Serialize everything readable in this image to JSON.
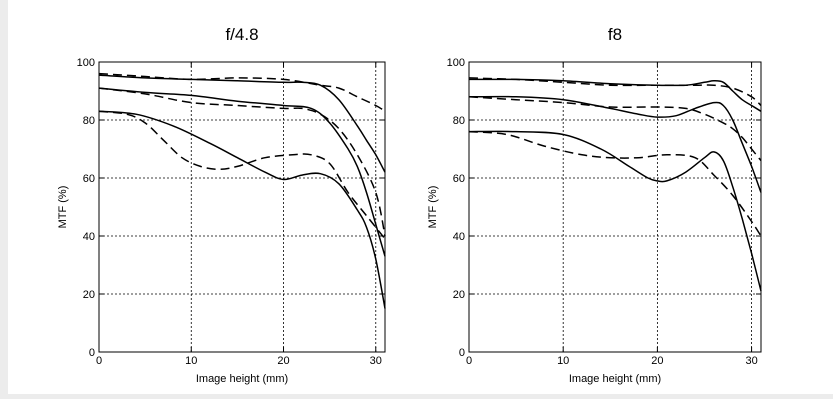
{
  "chart_data": [
    {
      "type": "line",
      "title": "f/4.8",
      "xlabel": "Image height (mm)",
      "ylabel": "MTF (%)",
      "xlim": [
        0,
        31
      ],
      "ylim": [
        0,
        100
      ],
      "xticks": [
        0,
        10,
        20,
        30
      ],
      "yticks": [
        0,
        20,
        40,
        60,
        80,
        100
      ],
      "grid": true,
      "series": [
        {
          "style": "solid",
          "points": [
            [
              0,
              95.5
            ],
            [
              5,
              94.5
            ],
            [
              10,
              94
            ],
            [
              15,
              93.5
            ],
            [
              20,
              93
            ],
            [
              22,
              93
            ],
            [
              24,
              92
            ],
            [
              26,
              87
            ],
            [
              28,
              78
            ],
            [
              29,
              73
            ],
            [
              30,
              68
            ],
            [
              31,
              62
            ]
          ]
        },
        {
          "style": "dashed",
          "points": [
            [
              0,
              96
            ],
            [
              5,
              95
            ],
            [
              10,
              94
            ],
            [
              15,
              94.5
            ],
            [
              20,
              94
            ],
            [
              24,
              92
            ],
            [
              26,
              91
            ],
            [
              28,
              88
            ],
            [
              30,
              85
            ],
            [
              31,
              83
            ]
          ]
        },
        {
          "style": "solid",
          "points": [
            [
              0,
              91
            ],
            [
              5,
              89.5
            ],
            [
              10,
              88.5
            ],
            [
              15,
              86.5
            ],
            [
              20,
              85
            ],
            [
              23,
              84
            ],
            [
              25,
              79
            ],
            [
              27,
              70
            ],
            [
              28,
              64
            ],
            [
              29,
              55
            ],
            [
              30,
              44
            ],
            [
              31,
              33
            ]
          ]
        },
        {
          "style": "dashed",
          "points": [
            [
              0,
              91
            ],
            [
              5,
              89
            ],
            [
              10,
              86
            ],
            [
              15,
              85
            ],
            [
              20,
              84
            ],
            [
              22,
              84
            ],
            [
              24,
              82
            ],
            [
              26,
              77
            ],
            [
              28,
              68
            ],
            [
              30,
              55
            ],
            [
              31,
              40
            ]
          ]
        },
        {
          "style": "solid",
          "points": [
            [
              0,
              83
            ],
            [
              4,
              82
            ],
            [
              8,
              78
            ],
            [
              12,
              72
            ],
            [
              15,
              67
            ],
            [
              18,
              62
            ],
            [
              20,
              59.5
            ],
            [
              22,
              61
            ],
            [
              24,
              61.5
            ],
            [
              26,
              58
            ],
            [
              28,
              49
            ],
            [
              29,
              43
            ],
            [
              30,
              32
            ],
            [
              31,
              15
            ]
          ]
        },
        {
          "style": "dashed",
          "points": [
            [
              0,
              83
            ],
            [
              3,
              82
            ],
            [
              5,
              79
            ],
            [
              7,
              73
            ],
            [
              9,
              67
            ],
            [
              11,
              64
            ],
            [
              13,
              63
            ],
            [
              15,
              64
            ],
            [
              18,
              67
            ],
            [
              21,
              68
            ],
            [
              23,
              68
            ],
            [
              25,
              65
            ],
            [
              27,
              55
            ],
            [
              29,
              47
            ],
            [
              31,
              39
            ]
          ]
        }
      ]
    },
    {
      "type": "line",
      "title": "f8",
      "xlabel": "Image height (mm)",
      "ylabel": "MTF (%)",
      "xlim": [
        0,
        31
      ],
      "ylim": [
        0,
        100
      ],
      "xticks": [
        0,
        10,
        20,
        30
      ],
      "yticks": [
        0,
        20,
        40,
        60,
        80,
        100
      ],
      "grid": true,
      "series": [
        {
          "style": "solid",
          "points": [
            [
              0,
              94
            ],
            [
              5,
              94
            ],
            [
              10,
              93.5
            ],
            [
              15,
              92.5
            ],
            [
              20,
              92
            ],
            [
              23,
              92
            ],
            [
              25,
              93
            ],
            [
              26,
              93.5
            ],
            [
              27,
              93
            ],
            [
              28,
              90
            ],
            [
              29,
              87
            ],
            [
              30,
              85
            ],
            [
              31,
              83
            ]
          ]
        },
        {
          "style": "dashed",
          "points": [
            [
              0,
              94.5
            ],
            [
              5,
              94
            ],
            [
              10,
              93
            ],
            [
              15,
              92
            ],
            [
              20,
              92
            ],
            [
              24,
              92
            ],
            [
              26,
              92
            ],
            [
              28,
              91
            ],
            [
              30,
              88
            ],
            [
              31,
              85
            ]
          ]
        },
        {
          "style": "solid",
          "points": [
            [
              0,
              88
            ],
            [
              5,
              88
            ],
            [
              10,
              87
            ],
            [
              15,
              84
            ],
            [
              18,
              82
            ],
            [
              20,
              81
            ],
            [
              22,
              81.5
            ],
            [
              24,
              84
            ],
            [
              26,
              86
            ],
            [
              27,
              85
            ],
            [
              28,
              80
            ],
            [
              29,
              72
            ],
            [
              30,
              64
            ],
            [
              31,
              55
            ]
          ]
        },
        {
          "style": "dashed",
          "points": [
            [
              0,
              88
            ],
            [
              5,
              87
            ],
            [
              10,
              86
            ],
            [
              15,
              84.5
            ],
            [
              20,
              84.5
            ],
            [
              23,
              84
            ],
            [
              25,
              82
            ],
            [
              27,
              79
            ],
            [
              28,
              77
            ],
            [
              29,
              74
            ],
            [
              30,
              70
            ],
            [
              31,
              66
            ]
          ]
        },
        {
          "style": "solid",
          "points": [
            [
              0,
              76
            ],
            [
              5,
              76
            ],
            [
              10,
              75
            ],
            [
              14,
              70
            ],
            [
              17,
              64
            ],
            [
              19,
              60
            ],
            [
              20,
              59
            ],
            [
              21,
              59
            ],
            [
              23,
              62
            ],
            [
              25,
              67
            ],
            [
              26,
              69
            ],
            [
              27,
              66
            ],
            [
              28,
              57
            ],
            [
              29,
              46
            ],
            [
              30,
              34
            ],
            [
              31,
              21
            ]
          ]
        },
        {
          "style": "dashed",
          "points": [
            [
              0,
              76
            ],
            [
              4,
              75
            ],
            [
              8,
              71
            ],
            [
              12,
              68
            ],
            [
              15,
              67
            ],
            [
              18,
              67
            ],
            [
              21,
              68
            ],
            [
              24,
              67
            ],
            [
              26,
              61
            ],
            [
              28,
              54
            ],
            [
              30,
              45
            ],
            [
              31,
              40
            ]
          ]
        }
      ]
    }
  ]
}
